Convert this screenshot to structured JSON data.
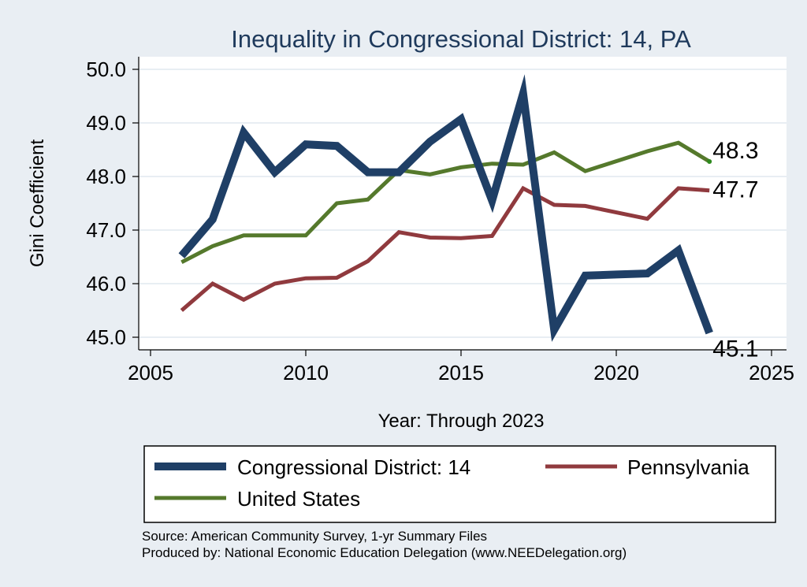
{
  "chart_data": {
    "type": "line",
    "title": "Inequality in Congressional District:  14, PA",
    "xlabel": "Year: Through 2023",
    "ylabel": "Gini Coefficient",
    "xlim": [
      2005,
      2025
    ],
    "ylim": [
      45.0,
      50.0
    ],
    "x_ticks": [
      2005,
      2010,
      2015,
      2020,
      2025
    ],
    "y_ticks": [
      45.0,
      46.0,
      47.0,
      48.0,
      49.0,
      50.0
    ],
    "y_tick_labels": [
      "45.0",
      "46.0",
      "47.0",
      "48.0",
      "49.0",
      "50.0"
    ],
    "grid": true,
    "legend_position": "bottom",
    "series": [
      {
        "name": "Congressional District:  14",
        "color": "#1f3f66",
        "width": 10,
        "x": [
          2006,
          2007,
          2008,
          2009,
          2010,
          2011,
          2012,
          2013,
          2014,
          2015,
          2016,
          2017,
          2018,
          2019,
          2020,
          2021,
          2022,
          2023
        ],
        "y": [
          46.52,
          47.2,
          48.82,
          48.08,
          48.6,
          48.57,
          48.08,
          48.08,
          48.65,
          49.07,
          47.55,
          49.55,
          45.14,
          46.15,
          46.17,
          46.19,
          46.62,
          45.08
        ],
        "end_label": "45.1"
      },
      {
        "name": "Pennsylvania",
        "color": "#903a3e",
        "width": 5,
        "x": [
          2006,
          2007,
          2008,
          2009,
          2010,
          2011,
          2012,
          2013,
          2014,
          2015,
          2016,
          2017,
          2018,
          2019,
          2021,
          2022,
          2023
        ],
        "y": [
          45.5,
          46.0,
          45.7,
          46.0,
          46.1,
          46.11,
          46.42,
          46.96,
          46.86,
          46.85,
          46.89,
          47.78,
          47.47,
          47.45,
          47.21,
          47.78,
          47.74
        ],
        "end_label": "47.7"
      },
      {
        "name": "United States",
        "color": "#55792c",
        "width": 5,
        "x": [
          2006,
          2007,
          2008,
          2009,
          2010,
          2011,
          2012,
          2013,
          2014,
          2015,
          2016,
          2017,
          2018,
          2019,
          2021,
          2022,
          2023
        ],
        "y": [
          46.4,
          46.7,
          46.9,
          46.9,
          46.9,
          47.5,
          47.57,
          48.12,
          48.04,
          48.17,
          48.24,
          48.22,
          48.45,
          48.1,
          48.47,
          48.63,
          48.28
        ],
        "end_label": "48.3"
      }
    ],
    "source_lines": [
      "Source: American Community Survey, 1-yr Summary Files",
      "Produced by: National Economic Education Delegation (www.NEEDelegation.org)"
    ]
  }
}
